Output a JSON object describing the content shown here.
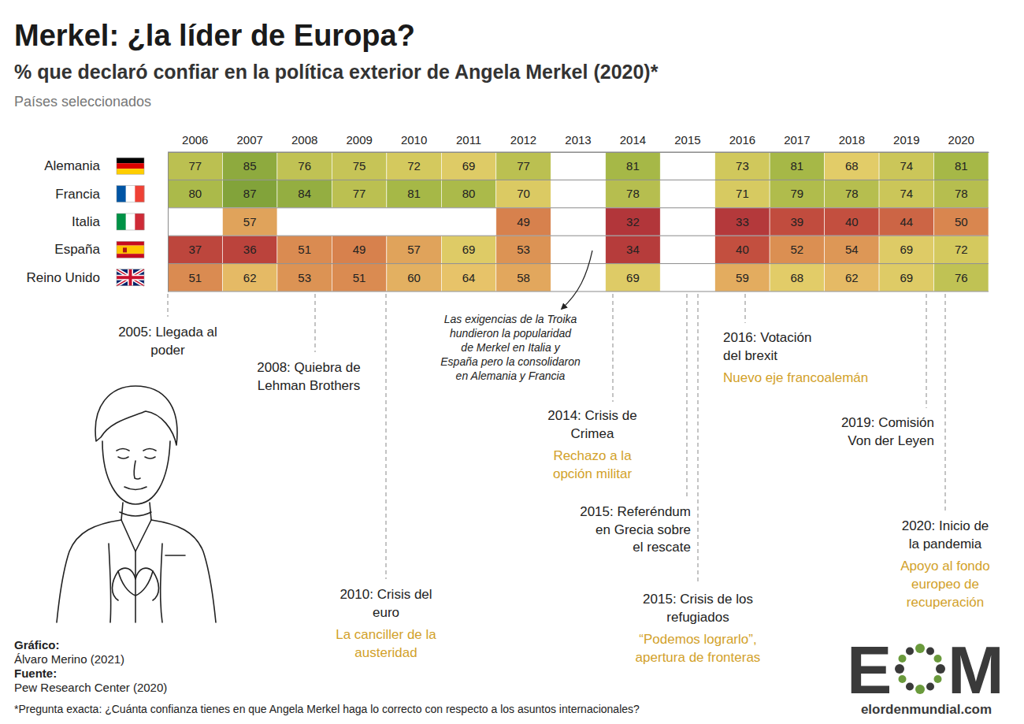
{
  "chart_data": {
    "type": "heatmap",
    "title": "Merkel: ¿la líder de Europa?",
    "subtitle": "% que declaró confiar en la política exterior de Angela Merkel (2020)*",
    "note": "Países seleccionados",
    "categories": [
      "2006",
      "2007",
      "2008",
      "2009",
      "2010",
      "2011",
      "2012",
      "2013",
      "2014",
      "2015",
      "2016",
      "2017",
      "2018",
      "2019",
      "2020"
    ],
    "rows": [
      "Alemania",
      "Francia",
      "Italia",
      "España",
      "Reino Unido"
    ],
    "values": [
      [
        77,
        85,
        76,
        75,
        72,
        69,
        77,
        null,
        81,
        null,
        73,
        81,
        68,
        74,
        81
      ],
      [
        80,
        87,
        84,
        77,
        81,
        80,
        70,
        null,
        78,
        null,
        71,
        79,
        78,
        74,
        78
      ],
      [
        null,
        57,
        null,
        null,
        null,
        null,
        49,
        null,
        32,
        null,
        33,
        39,
        40,
        44,
        50
      ],
      [
        37,
        36,
        51,
        49,
        57,
        69,
        53,
        null,
        34,
        null,
        40,
        52,
        54,
        69,
        72
      ],
      [
        51,
        62,
        53,
        51,
        60,
        64,
        58,
        null,
        69,
        null,
        59,
        68,
        62,
        69,
        76
      ]
    ],
    "data_labels": true,
    "annotations": [
      {
        "lines": [
          "2005: Llegada al",
          "poder"
        ],
        "highlight": []
      },
      {
        "lines": [
          "2008: Quiebra de",
          "Lehman Brothers"
        ],
        "highlight": []
      },
      {
        "lines": [
          "2010: Crisis del",
          "euro"
        ],
        "highlight": [
          "La canciller de la",
          "austeridad"
        ]
      },
      {
        "lines": [
          "2014: Crisis de",
          "Crimea"
        ],
        "highlight": [
          "Rechazo a la",
          "opción militar"
        ]
      },
      {
        "lines": [
          "2015: Referéndum",
          "en Grecia sobre",
          "el rescate"
        ],
        "highlight": []
      },
      {
        "lines": [
          "2015: Crisis de los",
          "refugiados"
        ],
        "highlight": [
          "“Podemos lograrlo”,",
          "apertura de fronteras"
        ]
      },
      {
        "lines": [
          "2016: Votación",
          "del brexit"
        ],
        "highlight": [
          "Nuevo eje francoalemán"
        ]
      },
      {
        "lines": [
          "2019: Comisión",
          "Von der Leyen"
        ],
        "highlight": []
      },
      {
        "lines": [
          "2020: Inicio de",
          "la pandemia"
        ],
        "highlight": [
          "Apoyo al fondo",
          "europeo de",
          "recuperación"
        ]
      }
    ],
    "callout": [
      "Las exigencias de la Troika",
      "hundieron la popularidad",
      "de Merkel en Italia y",
      "España pero la consolidaron",
      "en Alemania y Francia"
    ],
    "credits": {
      "graphic_label": "Gráfico:",
      "graphic": "Álvaro Merino (2021)",
      "source_label": "Fuente:",
      "source": "Pew Research Center (2020)"
    },
    "footnote": "*Pregunta exacta: ¿Cuánta confianza tienes en que Angela Merkel haga lo correcto con respecto a los asuntos internacionales?",
    "logo": {
      "left": "E",
      "right": "M",
      "site": "elordenmundial.com"
    }
  }
}
